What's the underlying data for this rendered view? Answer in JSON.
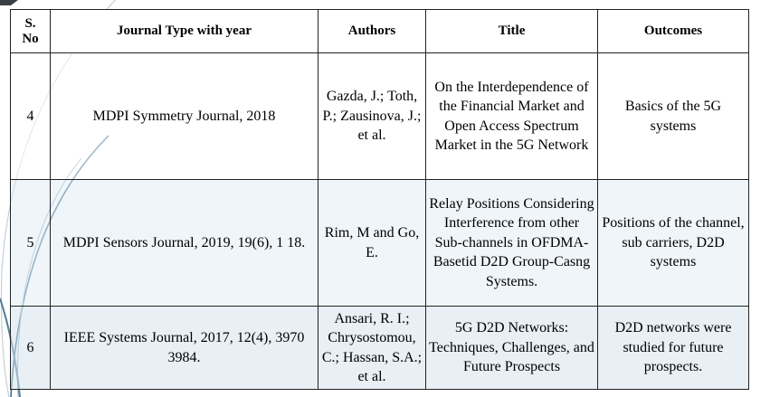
{
  "table": {
    "headers": [
      "S.\nNo",
      "Journal Type with year",
      "Authors",
      "Title",
      "Outcomes"
    ],
    "rows": [
      {
        "sno": "4",
        "journal": "MDPI Symmetry Journal, 2018",
        "authors": "Gazda, J.; Toth, P.; Zausinova, J.; et al.",
        "title": "On the Interdependence of the Financial Market and Open Access Spectrum Market in the 5G Network",
        "outcomes": "Basics of the 5G systems"
      },
      {
        "sno": "5",
        "journal": "MDPI Sensors Journal, 2019, 19(6), 1 18.",
        "authors": "Rim, M and Go, E.",
        "title": "Relay Positions Considering Interference from other Sub-channels in OFDMA-Basetid D2D Group-Casng Systems.",
        "outcomes": "Positions of the channel, sub carriers, D2D systems"
      },
      {
        "sno": "6",
        "journal": "IEEE Systems Journal, 2017, 12(4), 3970 3984.",
        "authors": "Ansari, R. I.; Chrysostomou, C.; Hassan, S.A.; et al.",
        "title": "5G D2D Networks: Techniques, Challenges, and Future Prospects",
        "outcomes": "D2D networks were studied for future prospects."
      }
    ]
  }
}
